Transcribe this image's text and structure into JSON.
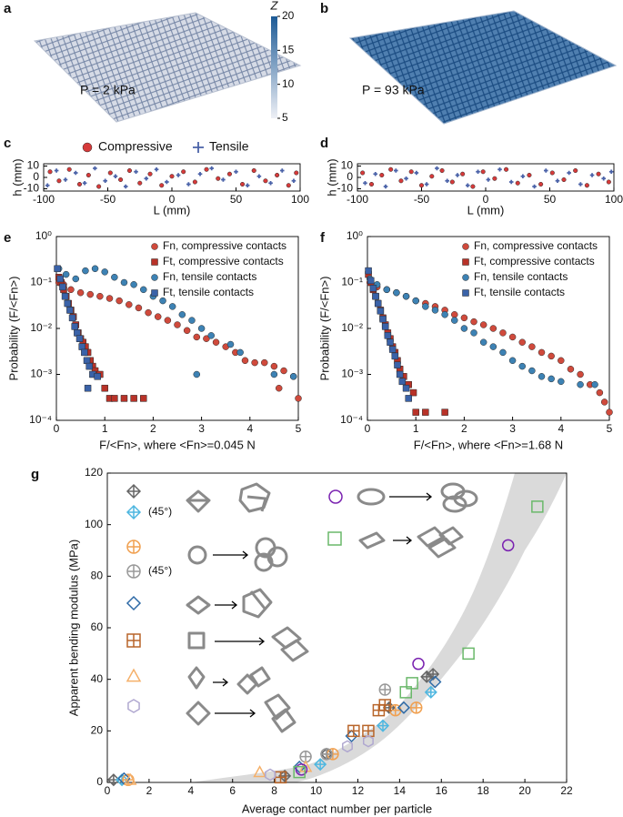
{
  "chart_data": [
    {
      "type": "image",
      "panel": "a",
      "annotation": "P = 2 kPa"
    },
    {
      "type": "image",
      "panel": "b",
      "annotation": "P = 93 kPa"
    },
    {
      "type": "colorbar",
      "label": "Z",
      "ylim": [
        5,
        20
      ],
      "yticks": [
        5,
        10,
        15,
        20
      ],
      "colors": [
        "#eef0f6",
        "#1c5a96"
      ]
    },
    {
      "type": "scatter",
      "panel": "c",
      "xlabel": "L (mm)",
      "ylabel": "h (mm)",
      "xlim": [
        -100,
        100
      ],
      "xticks": [
        -100,
        -50,
        0,
        50,
        100
      ],
      "ylim": [
        -12,
        12
      ],
      "yticks": [
        -10,
        0,
        10
      ],
      "legend": "top",
      "series": [
        {
          "name": "Compressive",
          "color": "#d63a3a",
          "marker": "filled-circle",
          "x": [
            -95,
            -88,
            -80,
            -72,
            -65,
            -57,
            -48,
            -40,
            -33,
            -25,
            -17,
            -8,
            0,
            9,
            18,
            27,
            36,
            45,
            55,
            64,
            73,
            82,
            91,
            97
          ],
          "values": [
            5,
            -3,
            7,
            -6,
            2,
            -8,
            4,
            -2,
            6,
            -5,
            3,
            -7,
            1,
            5,
            -4,
            7,
            -1,
            3,
            -6,
            6,
            -3,
            2,
            -7,
            4
          ]
        },
        {
          "name": "Tensile",
          "color": "#4a62a8",
          "marker": "plus",
          "x": [
            -97,
            -90,
            -83,
            -75,
            -68,
            -60,
            -52,
            -44,
            -36,
            -28,
            -20,
            -12,
            -4,
            5,
            13,
            22,
            31,
            40,
            50,
            59,
            68,
            77,
            86,
            95
          ],
          "values": [
            -7,
            6,
            -2,
            4,
            -5,
            8,
            -3,
            1,
            -8,
            5,
            -1,
            7,
            -4,
            2,
            -6,
            3,
            8,
            -2,
            5,
            -7,
            1,
            -5,
            6,
            -3
          ]
        }
      ]
    },
    {
      "type": "scatter",
      "panel": "d",
      "xlabel": "L (mm)",
      "ylabel": "h (mm)",
      "xlim": [
        -100,
        100
      ],
      "xticks": [
        -100,
        -50,
        0,
        50,
        100
      ],
      "ylim": [
        -12,
        12
      ],
      "yticks": [
        -10,
        0,
        10
      ],
      "series": [
        {
          "color": "#d63a3a",
          "marker": "filled-circle",
          "x": [
            -96,
            -89,
            -81,
            -74,
            -66,
            -58,
            -50,
            -42,
            -34,
            -26,
            -18,
            -10,
            -2,
            7,
            16,
            25,
            34,
            43,
            52,
            61,
            70,
            79,
            88,
            96
          ],
          "values": [
            4,
            -6,
            2,
            7,
            -3,
            5,
            -7,
            1,
            6,
            -4,
            3,
            -8,
            5,
            -1,
            7,
            -5,
            2,
            -6,
            4,
            -2,
            6,
            -7,
            3,
            -4
          ]
        },
        {
          "color": "#4a62a8",
          "marker": "plus",
          "x": [
            -94,
            -86,
            -78,
            -70,
            -62,
            -54,
            -46,
            -38,
            -30,
            -22,
            -14,
            -6,
            2,
            11,
            20,
            29,
            38,
            47,
            56,
            65,
            74,
            83,
            92,
            98
          ],
          "values": [
            -5,
            3,
            -8,
            6,
            -1,
            4,
            -6,
            8,
            -3,
            2,
            -7,
            5,
            -2,
            7,
            -4,
            1,
            -8,
            6,
            -3,
            4,
            -6,
            2,
            -1,
            5
          ]
        }
      ]
    },
    {
      "type": "scatter",
      "panel": "e",
      "xlabel": "F/<Fn>, where <Fn>=0.045 N",
      "ylabel": "Probability (F/<Fn>)",
      "yscale": "log",
      "legend": "upper right",
      "xlim": [
        0,
        5
      ],
      "xticks": [
        0,
        1,
        2,
        3,
        4,
        5
      ],
      "ylim": [
        0.0001,
        1
      ],
      "yticks": [
        {
          "value": 0.0001,
          "label": "10⁻⁴"
        },
        {
          "value": 0.001,
          "label": "10⁻³"
        },
        {
          "value": 0.01,
          "label": "10⁻²"
        },
        {
          "value": 0.1,
          "label": "10⁻¹"
        },
        {
          "value": 1,
          "label": "10⁰"
        }
      ],
      "series": [
        {
          "name": "Fn, compressive contacts",
          "color": "#d04a3c",
          "marker": "filled-circle",
          "x": [
            0.05,
            0.15,
            0.3,
            0.5,
            0.7,
            0.9,
            1.1,
            1.3,
            1.5,
            1.7,
            1.9,
            2.1,
            2.3,
            2.5,
            2.7,
            2.9,
            3.1,
            3.3,
            3.5,
            3.7,
            3.9,
            4.1,
            4.3,
            4.5,
            4.7,
            4.9,
            4.6,
            5
          ],
          "values": [
            0.1,
            0.09,
            0.07,
            0.06,
            0.055,
            0.05,
            0.045,
            0.04,
            0.033,
            0.028,
            0.022,
            0.018,
            0.015,
            0.012,
            0.009,
            0.0065,
            0.006,
            0.005,
            0.004,
            0.003,
            0.002,
            0.0018,
            0.0018,
            0.0015,
            0.0012,
            0.0009,
            0.0005,
            0.0003
          ]
        },
        {
          "name": "Ft, compressive contacts",
          "color": "#b83228",
          "marker": "filled-square",
          "x": [
            0.05,
            0.1,
            0.15,
            0.2,
            0.25,
            0.3,
            0.35,
            0.4,
            0.45,
            0.5,
            0.55,
            0.6,
            0.65,
            0.7,
            0.75,
            0.8,
            0.9,
            1.0,
            1.1,
            1.2,
            1.4,
            1.6,
            1.8
          ],
          "values": [
            0.13,
            0.1,
            0.07,
            0.05,
            0.035,
            0.025,
            0.018,
            0.012,
            0.008,
            0.006,
            0.005,
            0.004,
            0.003,
            0.002,
            0.0015,
            0.0012,
            0.001,
            0.0005,
            0.0003,
            0.0003,
            0.0003,
            0.0003,
            0.0003
          ]
        },
        {
          "name": "Fn, tensile contacts",
          "color": "#3d82b4",
          "marker": "filled-circle",
          "x": [
            0.05,
            0.2,
            0.4,
            0.6,
            0.8,
            1.0,
            1.2,
            1.4,
            1.6,
            1.8,
            2.0,
            2.2,
            2.4,
            2.6,
            2.8,
            3.0,
            3.2,
            3.6,
            3.8,
            2.9,
            4.5,
            4.9
          ],
          "values": [
            0.2,
            0.15,
            0.12,
            0.18,
            0.2,
            0.17,
            0.13,
            0.1,
            0.09,
            0.07,
            0.05,
            0.04,
            0.03,
            0.02,
            0.015,
            0.01,
            0.007,
            0.0045,
            0.003,
            0.001,
            0.001,
            0.0009
          ]
        },
        {
          "name": "Ft, tensile contacts",
          "color": "#3a62a8",
          "marker": "filled-square",
          "x": [
            0.02,
            0.08,
            0.13,
            0.18,
            0.23,
            0.28,
            0.33,
            0.38,
            0.43,
            0.48,
            0.53,
            0.58,
            0.63,
            0.68,
            0.75,
            0.85,
            0.65
          ],
          "values": [
            0.2,
            0.12,
            0.08,
            0.05,
            0.035,
            0.025,
            0.017,
            0.011,
            0.008,
            0.006,
            0.004,
            0.003,
            0.002,
            0.0015,
            0.001,
            0.0009,
            0.0005
          ]
        }
      ]
    },
    {
      "type": "scatter",
      "panel": "f",
      "xlabel": "F/<Fn>, where <Fn>=1.68 N",
      "ylabel": "Probability (F/<Fn>)",
      "yscale": "log",
      "legend": "upper right",
      "xlim": [
        0,
        5
      ],
      "xticks": [
        0,
        1,
        2,
        3,
        4,
        5
      ],
      "ylim": [
        0.0001,
        1
      ],
      "yticks": [
        {
          "value": 0.0001,
          "label": "10⁻⁴"
        },
        {
          "value": 0.001,
          "label": "10⁻³"
        },
        {
          "value": 0.01,
          "label": "10⁻²"
        },
        {
          "value": 0.1,
          "label": "10⁻¹"
        },
        {
          "value": 1,
          "label": "10⁰"
        }
      ],
      "series": [
        {
          "name": "Fn, compressive contacts",
          "color": "#d04a3c",
          "marker": "filled-circle",
          "x": [
            0.05,
            0.2,
            0.4,
            0.6,
            0.8,
            1.0,
            1.2,
            1.4,
            1.6,
            1.8,
            2.0,
            2.2,
            2.4,
            2.6,
            2.8,
            3.0,
            3.2,
            3.4,
            3.6,
            3.8,
            4.0,
            4.2,
            4.4,
            4.6,
            4.8,
            4.9,
            5.0
          ],
          "values": [
            0.1,
            0.08,
            0.07,
            0.06,
            0.05,
            0.04,
            0.035,
            0.03,
            0.025,
            0.02,
            0.017,
            0.014,
            0.012,
            0.01,
            0.008,
            0.0065,
            0.005,
            0.004,
            0.003,
            0.0025,
            0.002,
            0.0013,
            0.001,
            0.0006,
            0.0004,
            0.00025,
            0.00015
          ]
        },
        {
          "name": "Ft, compressive contacts",
          "color": "#b83228",
          "marker": "filled-square",
          "x": [
            0.02,
            0.07,
            0.12,
            0.17,
            0.22,
            0.27,
            0.32,
            0.37,
            0.42,
            0.47,
            0.52,
            0.57,
            0.62,
            0.67,
            0.75,
            0.85,
            0.95,
            1.0,
            1.2,
            1.6
          ],
          "values": [
            0.15,
            0.1,
            0.07,
            0.05,
            0.035,
            0.025,
            0.017,
            0.012,
            0.008,
            0.006,
            0.004,
            0.003,
            0.002,
            0.0013,
            0.0009,
            0.0006,
            0.0004,
            0.00015,
            0.00015,
            0.00015
          ]
        },
        {
          "name": "Fn, tensile contacts",
          "color": "#3d82b4",
          "marker": "filled-circle",
          "x": [
            0.05,
            0.2,
            0.4,
            0.6,
            0.8,
            1.0,
            1.2,
            1.4,
            1.6,
            1.8,
            2.0,
            2.2,
            2.4,
            2.6,
            2.8,
            3.0,
            3.2,
            3.4,
            3.6,
            3.8,
            4.0,
            4.4,
            4.7
          ],
          "values": [
            0.12,
            0.09,
            0.07,
            0.06,
            0.05,
            0.04,
            0.03,
            0.025,
            0.02,
            0.015,
            0.01,
            0.008,
            0.005,
            0.004,
            0.003,
            0.002,
            0.0015,
            0.0012,
            0.0009,
            0.0008,
            0.0007,
            0.0006,
            0.0006
          ]
        },
        {
          "name": "Ft, tensile contacts",
          "color": "#3a62a8",
          "marker": "filled-square",
          "x": [
            0.02,
            0.07,
            0.12,
            0.17,
            0.22,
            0.27,
            0.32,
            0.37,
            0.42,
            0.47,
            0.52,
            0.57,
            0.62,
            0.67,
            0.72,
            0.8,
            0.85
          ],
          "values": [
            0.18,
            0.11,
            0.075,
            0.05,
            0.035,
            0.024,
            0.016,
            0.011,
            0.007,
            0.005,
            0.0035,
            0.0025,
            0.0016,
            0.001,
            0.0007,
            0.0005,
            0.0003
          ]
        }
      ]
    },
    {
      "type": "scatter",
      "panel": "g",
      "xlabel": "Average contact number per particle",
      "ylabel": "Apparent bending modulus (MPa)",
      "xlim": [
        0,
        22
      ],
      "xticks": [
        0,
        2,
        4,
        6,
        8,
        10,
        12,
        14,
        16,
        18,
        20,
        22
      ],
      "ylim": [
        0,
        120
      ],
      "yticks": [
        0,
        20,
        40,
        60,
        80,
        100,
        120
      ],
      "annotations": [
        "(45°)",
        "(45°)"
      ],
      "series": [
        {
          "color": "#666666",
          "marker": "diamond-cross",
          "x": [
            0.3,
            8.5,
            10.5,
            13.5,
            15.3,
            15.6
          ],
          "values": [
            1,
            2.5,
            11,
            29,
            41,
            42
          ]
        },
        {
          "color": "#4fb7e0",
          "marker": "diamond-cross",
          "x": [
            0.7,
            10.2,
            13.2,
            15.5
          ],
          "values": [
            1,
            7,
            22,
            35
          ]
        },
        {
          "color": "#f0a050",
          "marker": "circle-plus",
          "x": [
            1,
            10.8,
            13.8,
            14.8
          ],
          "values": [
            1,
            11,
            28,
            29
          ]
        },
        {
          "color": "#999999",
          "marker": "circle-plus",
          "x": [
            9.5,
            10.5,
            13.3
          ],
          "values": [
            10,
            11,
            36
          ]
        },
        {
          "color": "#2e6aa6",
          "marker": "diamond",
          "x": [
            0.8,
            9.2,
            11.7,
            14.2,
            15.7
          ],
          "values": [
            1.5,
            6,
            18,
            29,
            39
          ]
        },
        {
          "color": "#b8652a",
          "marker": "square-plus",
          "x": [
            8.3,
            11.8,
            12.5,
            13,
            13.3
          ],
          "values": [
            2,
            20,
            20,
            28,
            30
          ]
        },
        {
          "color": "#f5b06a",
          "marker": "triangle",
          "x": [
            1.1,
            7.3,
            9.5
          ],
          "values": [
            1,
            4,
            6
          ]
        },
        {
          "color": "#b0a8d0",
          "marker": "hexagon",
          "x": [
            7.8,
            11.5,
            12.5
          ],
          "values": [
            3,
            14,
            16
          ]
        },
        {
          "color": "#7a22b0",
          "marker": "circle",
          "x": [
            9.3,
            14.9,
            19.2
          ],
          "values": [
            5,
            46,
            92
          ]
        },
        {
          "color": "#6ab86a",
          "marker": "square",
          "x": [
            9.2,
            14.3,
            14.6,
            17.3,
            20.6
          ],
          "values": [
            4,
            35,
            38.5,
            50,
            107
          ]
        }
      ]
    }
  ]
}
